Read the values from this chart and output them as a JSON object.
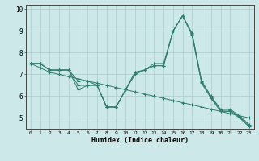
{
  "title": "",
  "xlabel": "Humidex (Indice chaleur)",
  "ylabel": "",
  "bg_color": "#cce8e8",
  "grid_color": "#aacccc",
  "line_color": "#2e7d6e",
  "xlim": [
    -0.5,
    23.5
  ],
  "ylim": [
    4.5,
    10.2
  ],
  "xticks": [
    0,
    1,
    2,
    3,
    4,
    5,
    6,
    7,
    8,
    9,
    10,
    11,
    12,
    13,
    14,
    15,
    16,
    17,
    18,
    19,
    20,
    21,
    22,
    23
  ],
  "yticks": [
    5,
    6,
    7,
    8,
    9,
    10
  ],
  "series": [
    [
      7.5,
      7.5,
      7.2,
      7.2,
      7.2,
      6.3,
      6.5,
      6.5,
      5.5,
      5.5,
      6.3,
      7.1,
      7.2,
      7.4,
      7.4,
      9.0,
      9.7,
      8.8,
      6.6,
      5.9,
      5.3,
      5.3,
      5.0,
      4.6
    ],
    [
      7.5,
      7.5,
      7.2,
      7.2,
      7.2,
      6.7,
      6.7,
      6.5,
      5.5,
      5.5,
      6.3,
      7.0,
      7.2,
      7.5,
      7.5,
      9.0,
      9.7,
      8.9,
      6.7,
      6.0,
      5.4,
      5.4,
      5.1,
      4.7
    ],
    [
      7.5,
      7.5,
      7.2,
      7.2,
      7.2,
      6.5,
      6.5,
      6.5,
      5.5,
      5.5,
      6.3,
      7.1,
      7.2,
      7.4,
      7.4,
      9.0,
      9.7,
      8.85,
      6.65,
      5.95,
      5.35,
      5.35,
      5.05,
      4.65
    ],
    [
      7.5,
      7.3,
      7.1,
      7.0,
      6.9,
      6.8,
      6.7,
      6.6,
      6.5,
      6.4,
      6.3,
      6.2,
      6.1,
      6.0,
      5.9,
      5.8,
      5.7,
      5.6,
      5.5,
      5.4,
      5.3,
      5.2,
      5.1,
      5.0
    ]
  ]
}
